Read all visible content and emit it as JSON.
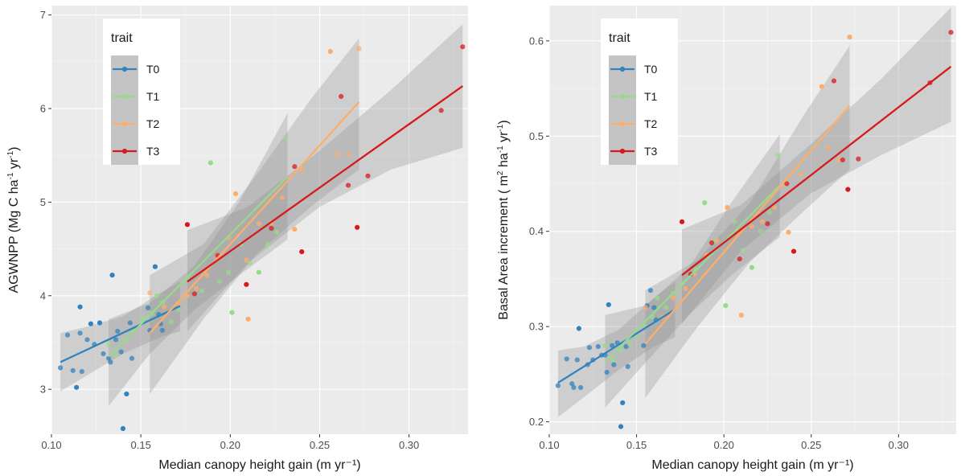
{
  "chart_data": [
    {
      "type": "scatter",
      "xlabel": "Median canopy height gain (m yr⁻¹)",
      "ylabel": {
        "base": "AGWNPP (Mg C ha",
        "sup1": "-1",
        "mid": " yr",
        "sup2": "-1",
        "end": ")"
      },
      "xlim": [
        0.1,
        0.333
      ],
      "ylim": [
        2.52,
        7.1
      ],
      "xticks": [
        0.1,
        0.15,
        0.2,
        0.25,
        0.3
      ],
      "xtick_labels": [
        "0.10",
        "0.15",
        "0.20",
        "0.25",
        "0.30"
      ],
      "yticks": [
        3,
        4,
        5,
        6,
        7
      ],
      "ytick_labels": [
        "3",
        "4",
        "5",
        "6",
        "7"
      ],
      "legend": {
        "title": "trait",
        "position": "top-left"
      },
      "grid": true,
      "series": [
        {
          "name": "T0",
          "color": "#3182bd",
          "points": [
            [
              0.105,
              3.23
            ],
            [
              0.109,
              3.58
            ],
            [
              0.112,
              3.2
            ],
            [
              0.114,
              3.02
            ],
            [
              0.116,
              3.88
            ],
            [
              0.116,
              3.6
            ],
            [
              0.117,
              3.19
            ],
            [
              0.12,
              3.53
            ],
            [
              0.122,
              3.7
            ],
            [
              0.124,
              3.48
            ],
            [
              0.127,
              3.71
            ],
            [
              0.129,
              3.38
            ],
            [
              0.132,
              3.33
            ],
            [
              0.133,
              3.29
            ],
            [
              0.134,
              4.22
            ],
            [
              0.136,
              3.53
            ],
            [
              0.137,
              3.62
            ],
            [
              0.139,
              3.4
            ],
            [
              0.14,
              2.58
            ],
            [
              0.142,
              2.95
            ],
            [
              0.144,
              3.71
            ],
            [
              0.145,
              3.33
            ],
            [
              0.154,
              3.87
            ],
            [
              0.155,
              3.63
            ],
            [
              0.158,
              4.31
            ],
            [
              0.16,
              3.8
            ],
            [
              0.161,
              3.7
            ],
            [
              0.162,
              3.63
            ]
          ],
          "fit": {
            "x": [
              0.105,
              0.172
            ],
            "y": [
              3.29,
              3.89
            ]
          },
          "band": {
            "x": [
              0.105,
              0.12,
              0.14,
              0.16,
              0.172
            ],
            "lower": [
              2.98,
              3.15,
              3.38,
              3.55,
              3.62
            ],
            "upper": [
              3.6,
              3.67,
              3.78,
              4.02,
              4.15
            ]
          }
        },
        {
          "name": "T1",
          "color": "#98d98e",
          "points": [
            [
              0.132,
              3.48
            ],
            [
              0.136,
              3.36
            ],
            [
              0.141,
              3.53
            ],
            [
              0.146,
              3.63
            ],
            [
              0.151,
              3.76
            ],
            [
              0.156,
              3.81
            ],
            [
              0.159,
              4.0
            ],
            [
              0.162,
              3.93
            ],
            [
              0.167,
              3.72
            ],
            [
              0.171,
              3.85
            ],
            [
              0.176,
              4.2
            ],
            [
              0.184,
              4.05
            ],
            [
              0.189,
              5.42
            ],
            [
              0.194,
              4.15
            ],
            [
              0.199,
              4.25
            ],
            [
              0.201,
              3.82
            ],
            [
              0.206,
              4.55
            ],
            [
              0.211,
              4.35
            ],
            [
              0.216,
              4.25
            ],
            [
              0.221,
              4.55
            ],
            [
              0.226,
              4.68
            ],
            [
              0.231,
              5.69
            ]
          ],
          "fit": {
            "x": [
              0.132,
              0.232
            ],
            "y": [
              3.35,
              5.27
            ]
          },
          "band": {
            "x": [
              0.132,
              0.155,
              0.18,
              0.205,
              0.232
            ],
            "lower": [
              2.82,
              3.38,
              3.85,
              4.22,
              4.6
            ],
            "upper": [
              3.75,
              3.92,
              4.32,
              5.0,
              5.95
            ]
          }
        },
        {
          "name": "T2",
          "color": "#fdae6b",
          "points": [
            [
              0.155,
              4.03
            ],
            [
              0.163,
              3.88
            ],
            [
              0.171,
              3.92
            ],
            [
              0.176,
              4.0
            ],
            [
              0.181,
              4.08
            ],
            [
              0.187,
              4.22
            ],
            [
              0.193,
              4.43
            ],
            [
              0.199,
              4.62
            ],
            [
              0.203,
              5.09
            ],
            [
              0.209,
              4.38
            ],
            [
              0.21,
              3.75
            ],
            [
              0.216,
              4.77
            ],
            [
              0.223,
              4.78
            ],
            [
              0.229,
              5.05
            ],
            [
              0.236,
              4.71
            ],
            [
              0.24,
              5.35
            ],
            [
              0.256,
              6.61
            ],
            [
              0.26,
              5.51
            ],
            [
              0.266,
              5.51
            ],
            [
              0.272,
              6.64
            ]
          ],
          "fit": {
            "x": [
              0.155,
              0.272
            ],
            "y": [
              3.6,
              6.07
            ]
          },
          "band": {
            "x": [
              0.155,
              0.185,
              0.215,
              0.245,
              0.272
            ],
            "lower": [
              2.95,
              3.75,
              4.45,
              4.95,
              5.35
            ],
            "upper": [
              4.22,
              4.55,
              5.3,
              6.1,
              6.75
            ]
          }
        },
        {
          "name": "T3",
          "color": "#d7191c",
          "points": [
            [
              0.176,
              4.76
            ],
            [
              0.18,
              4.02
            ],
            [
              0.193,
              4.43
            ],
            [
              0.209,
              4.12
            ],
            [
              0.223,
              4.72
            ],
            [
              0.236,
              5.38
            ],
            [
              0.24,
              4.47
            ],
            [
              0.262,
              6.13
            ],
            [
              0.266,
              5.18
            ],
            [
              0.271,
              4.73
            ],
            [
              0.277,
              5.28
            ],
            [
              0.318,
              5.98
            ],
            [
              0.33,
              6.66
            ]
          ],
          "fit": {
            "x": [
              0.176,
              0.33
            ],
            "y": [
              4.15,
              6.24
            ]
          },
          "band": {
            "x": [
              0.176,
              0.21,
              0.25,
              0.29,
              0.33
            ],
            "lower": [
              3.62,
              4.35,
              4.95,
              5.35,
              5.58
            ],
            "upper": [
              4.7,
              4.95,
              5.55,
              6.2,
              6.9
            ]
          }
        }
      ]
    },
    {
      "type": "scatter",
      "xlabel": "Median canopy height gain (m yr⁻¹)",
      "ylabel": {
        "base": "Basal Area increment ( m",
        "sup1": "2",
        "mid": " ha",
        "sup2": "-1",
        "mid2": " yr",
        "sup3": "-1",
        "end": ")"
      },
      "xlim": [
        0.1,
        0.333
      ],
      "ylim": [
        0.187,
        0.637
      ],
      "xticks": [
        0.1,
        0.15,
        0.2,
        0.25,
        0.3
      ],
      "xtick_labels": [
        "0.10",
        "0.15",
        "0.20",
        "0.25",
        "0.30"
      ],
      "yticks": [
        0.2,
        0.3,
        0.4,
        0.5,
        0.6
      ],
      "ytick_labels": [
        "0.2",
        "0.3",
        "0.4",
        "0.5",
        "0.6"
      ],
      "legend": {
        "title": "trait",
        "position": "top-left"
      },
      "grid": true,
      "series": [
        {
          "name": "T0",
          "color": "#3182bd",
          "points": [
            [
              0.105,
              0.238
            ],
            [
              0.11,
              0.266
            ],
            [
              0.113,
              0.24
            ],
            [
              0.114,
              0.236
            ],
            [
              0.116,
              0.265
            ],
            [
              0.117,
              0.298
            ],
            [
              0.118,
              0.236
            ],
            [
              0.122,
              0.26
            ],
            [
              0.123,
              0.278
            ],
            [
              0.125,
              0.265
            ],
            [
              0.128,
              0.279
            ],
            [
              0.13,
              0.27
            ],
            [
              0.132,
              0.27
            ],
            [
              0.133,
              0.252
            ],
            [
              0.134,
              0.323
            ],
            [
              0.136,
              0.28
            ],
            [
              0.137,
              0.26
            ],
            [
              0.139,
              0.283
            ],
            [
              0.141,
              0.195
            ],
            [
              0.142,
              0.22
            ],
            [
              0.144,
              0.279
            ],
            [
              0.145,
              0.258
            ],
            [
              0.154,
              0.28
            ],
            [
              0.156,
              0.322
            ],
            [
              0.158,
              0.338
            ],
            [
              0.16,
              0.32
            ],
            [
              0.161,
              0.307
            ]
          ],
          "fit": {
            "x": [
              0.105,
              0.172
            ],
            "y": [
              0.241,
              0.318
            ]
          },
          "band": {
            "x": [
              0.105,
              0.12,
              0.14,
              0.16,
              0.172
            ],
            "lower": [
              0.205,
              0.226,
              0.255,
              0.279,
              0.289
            ],
            "upper": [
              0.275,
              0.279,
              0.297,
              0.33,
              0.347
            ]
          }
        },
        {
          "name": "T1",
          "color": "#98d98e",
          "points": [
            [
              0.132,
              0.28
            ],
            [
              0.137,
              0.265
            ],
            [
              0.141,
              0.275
            ],
            [
              0.146,
              0.282
            ],
            [
              0.15,
              0.29
            ],
            [
              0.155,
              0.3
            ],
            [
              0.159,
              0.31
            ],
            [
              0.162,
              0.33
            ],
            [
              0.167,
              0.32
            ],
            [
              0.171,
              0.335
            ],
            [
              0.176,
              0.345
            ],
            [
              0.184,
              0.36
            ],
            [
              0.189,
              0.43
            ],
            [
              0.194,
              0.39
            ],
            [
              0.201,
              0.322
            ],
            [
              0.206,
              0.41
            ],
            [
              0.211,
              0.38
            ],
            [
              0.216,
              0.362
            ],
            [
              0.221,
              0.4
            ],
            [
              0.226,
              0.42
            ],
            [
              0.231,
              0.48
            ]
          ],
          "fit": {
            "x": [
              0.132,
              0.232
            ],
            "y": [
              0.263,
              0.448
            ]
          },
          "band": {
            "x": [
              0.132,
              0.155,
              0.18,
              0.205,
              0.232
            ],
            "lower": [
              0.215,
              0.262,
              0.312,
              0.355,
              0.394
            ],
            "upper": [
              0.312,
              0.322,
              0.362,
              0.432,
              0.502
            ]
          }
        },
        {
          "name": "T2",
          "color": "#fdae6b",
          "points": [
            [
              0.155,
              0.32
            ],
            [
              0.165,
              0.31
            ],
            [
              0.171,
              0.33
            ],
            [
              0.178,
              0.34
            ],
            [
              0.183,
              0.355
            ],
            [
              0.19,
              0.375
            ],
            [
              0.196,
              0.39
            ],
            [
              0.202,
              0.425
            ],
            [
              0.208,
              0.4
            ],
            [
              0.21,
              0.312
            ],
            [
              0.216,
              0.405
            ],
            [
              0.222,
              0.41
            ],
            [
              0.229,
              0.425
            ],
            [
              0.235,
              0.45
            ],
            [
              0.237,
              0.399
            ],
            [
              0.244,
              0.46
            ],
            [
              0.256,
              0.552
            ],
            [
              0.26,
              0.488
            ],
            [
              0.266,
              0.475
            ],
            [
              0.272,
              0.604
            ]
          ],
          "fit": {
            "x": [
              0.155,
              0.272
            ],
            "y": [
              0.282,
              0.532
            ]
          },
          "band": {
            "x": [
              0.155,
              0.185,
              0.215,
              0.245,
              0.272
            ],
            "lower": [
              0.225,
              0.3,
              0.368,
              0.42,
              0.465
            ],
            "upper": [
              0.338,
              0.37,
              0.43,
              0.52,
              0.595
            ]
          }
        },
        {
          "name": "T3",
          "color": "#d7191c",
          "points": [
            [
              0.176,
              0.41
            ],
            [
              0.181,
              0.355
            ],
            [
              0.193,
              0.388
            ],
            [
              0.209,
              0.371
            ],
            [
              0.225,
              0.408
            ],
            [
              0.236,
              0.45
            ],
            [
              0.24,
              0.379
            ],
            [
              0.263,
              0.558
            ],
            [
              0.268,
              0.475
            ],
            [
              0.271,
              0.444
            ],
            [
              0.277,
              0.476
            ],
            [
              0.318,
              0.556
            ],
            [
              0.33,
              0.609
            ]
          ],
          "fit": {
            "x": [
              0.176,
              0.33
            ],
            "y": [
              0.354,
              0.573
            ]
          },
          "band": {
            "x": [
              0.176,
              0.21,
              0.25,
              0.29,
              0.33
            ],
            "lower": [
              0.303,
              0.38,
              0.44,
              0.48,
              0.515
            ],
            "upper": [
              0.402,
              0.428,
              0.492,
              0.56,
              0.635
            ]
          }
        }
      ]
    }
  ]
}
